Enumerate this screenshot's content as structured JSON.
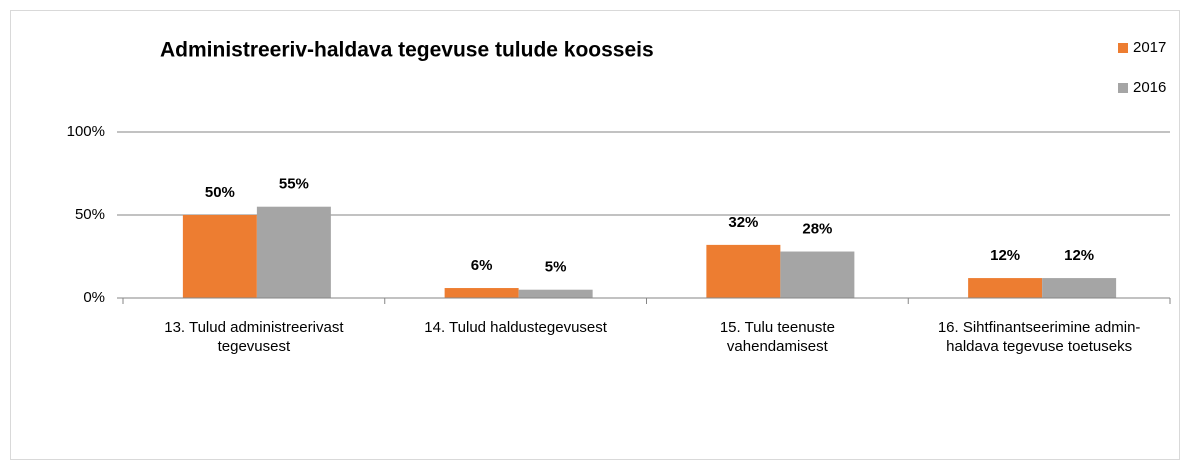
{
  "chart_data": {
    "type": "bar",
    "title": "Administreeriv-haldava tegevuse tulude koosseis",
    "categories": [
      "13. Tulud administreerivast tegevusest",
      "14. Tulud haldustegevusest",
      "15. Tulu teenuste vahendamisest",
      "16. Sihtfinantseerimine admin-haldava tegevuse toetuseks"
    ],
    "series": [
      {
        "name": "2017",
        "color": "#ed7d31",
        "values": [
          50,
          6,
          32,
          12
        ],
        "value_labels": [
          "50%",
          "6%",
          "32%",
          "12%"
        ]
      },
      {
        "name": "2016",
        "color": "#a5a5a5",
        "values": [
          55,
          5,
          28,
          12
        ],
        "value_labels": [
          "55%",
          "5%",
          "28%",
          "12%"
        ]
      }
    ],
    "ylim": [
      0,
      100
    ],
    "yticks": [
      {
        "value": 0,
        "label": "0%"
      },
      {
        "value": 50,
        "label": "50%"
      },
      {
        "value": 100,
        "label": "100%"
      }
    ],
    "grid": true,
    "legend": "right"
  }
}
